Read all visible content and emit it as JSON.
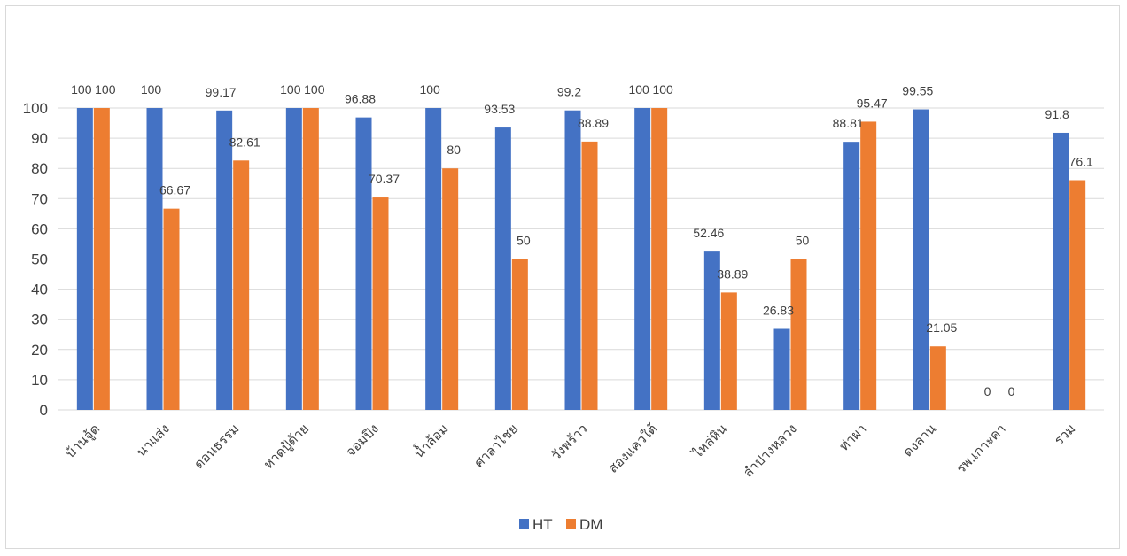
{
  "chart_data": {
    "type": "bar",
    "categories": [
      "บ้านจู้ด",
      "นาแส่ง",
      "ดอนธรรม",
      "หาดปู้ด้าย",
      "จอมปิง",
      "น้ำล้อม",
      "ศาลาไชย",
      "วังพร้าว",
      "สองแควใต้",
      "ไหล่หิน",
      "ลำปางหลวง",
      "ท่าผา",
      "ดงลาน",
      "รพ.เกาะคา",
      "รวม"
    ],
    "series": [
      {
        "name": "HT",
        "color": "#4472C4",
        "values": [
          100,
          100,
          99.17,
          100,
          96.88,
          100,
          93.53,
          99.2,
          100,
          52.46,
          26.83,
          88.81,
          99.55,
          0,
          91.8
        ]
      },
      {
        "name": "DM",
        "color": "#ED7D31",
        "values": [
          100,
          66.67,
          82.61,
          100,
          70.37,
          80,
          50,
          88.89,
          100,
          38.89,
          50,
          95.47,
          21.05,
          0,
          76.1
        ]
      }
    ],
    "ylim": [
      0,
      100
    ],
    "yticks": [
      0,
      10,
      20,
      30,
      40,
      50,
      60,
      70,
      80,
      90,
      100
    ],
    "grid": true,
    "legend": "bottom",
    "title": "",
    "xlabel": "",
    "ylabel": ""
  }
}
